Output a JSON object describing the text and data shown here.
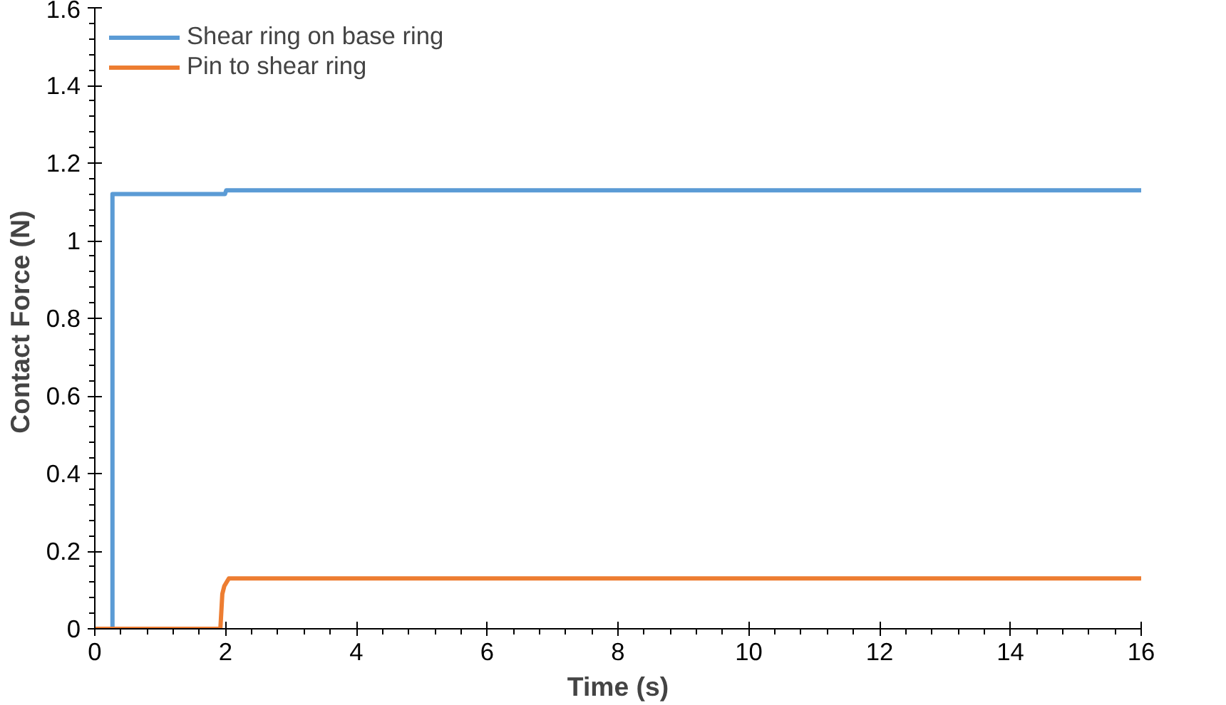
{
  "chart_data": {
    "type": "line",
    "xlabel": "Time (s)",
    "ylabel": "Contact  Force (N)",
    "xlim": [
      0,
      16
    ],
    "ylim": [
      0,
      1.6
    ],
    "xticks": [
      0,
      2,
      4,
      6,
      8,
      10,
      12,
      14,
      16
    ],
    "yticks": [
      0,
      0.2,
      0.4,
      0.6,
      0.8,
      1,
      1.2,
      1.4,
      1.6
    ],
    "grid": false,
    "legend": "top left",
    "line_style": "solid",
    "marker": "none",
    "series": [
      {
        "name": "Shear ring on base ring",
        "color": "#5b9bd5",
        "x": [
          0,
          0.27,
          0.27,
          1.99,
          2.01,
          16
        ],
        "values": [
          0,
          0,
          1.12,
          1.12,
          1.13,
          1.13
        ]
      },
      {
        "name": "Pin to shear ring",
        "color": "#ed7d31",
        "x": [
          0,
          1.92,
          1.95,
          1.98,
          2.05,
          16
        ],
        "values": [
          0,
          0,
          0.09,
          0.11,
          0.13,
          0.13
        ]
      }
    ]
  }
}
